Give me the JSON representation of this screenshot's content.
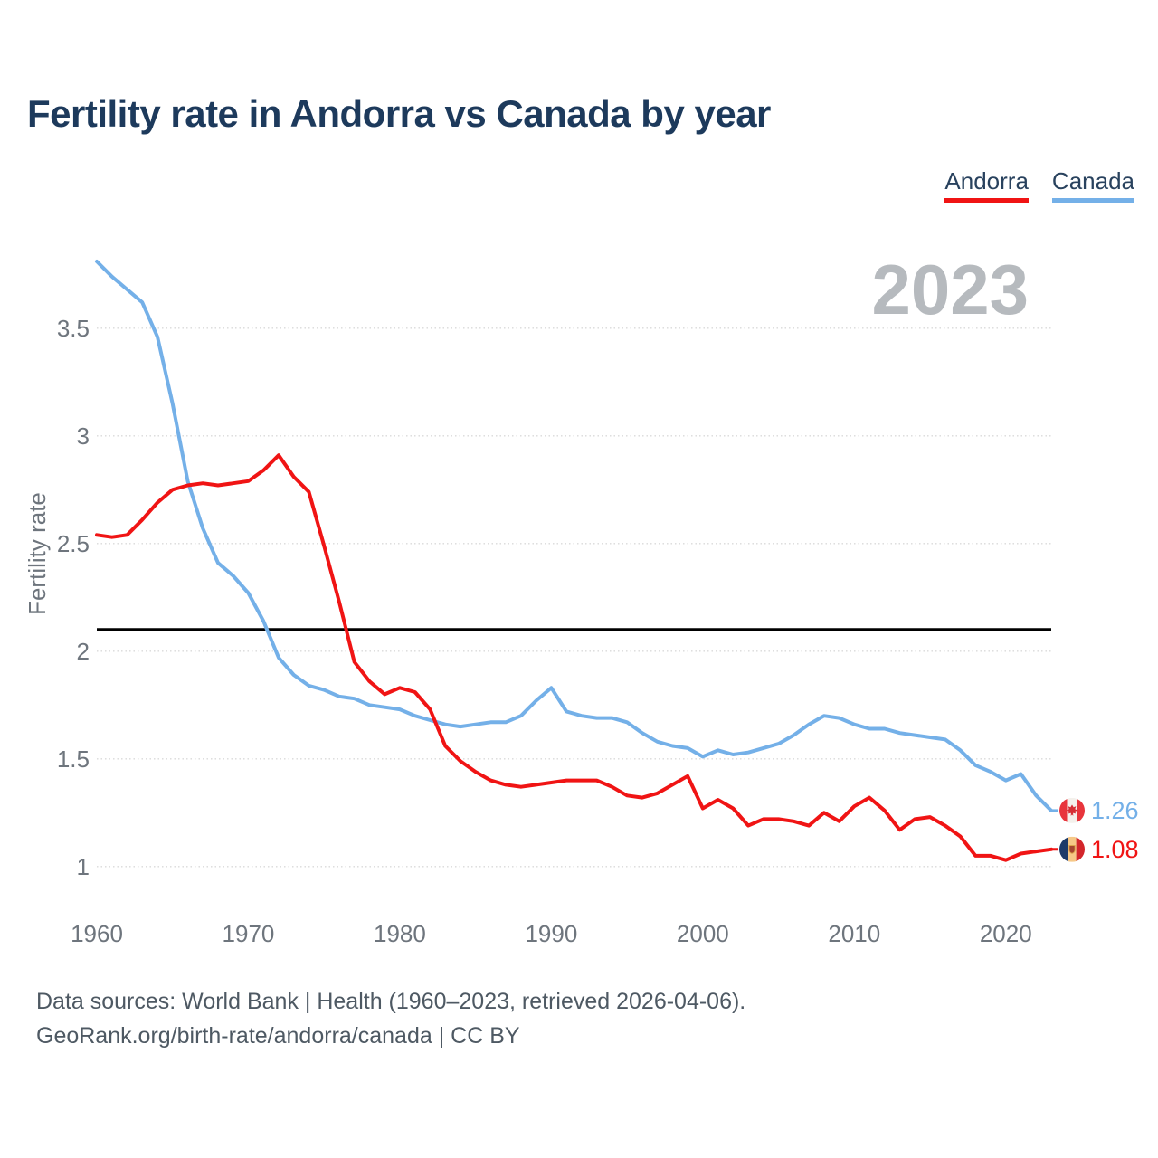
{
  "page": {
    "title": "Fertility rate in Andorra vs Canada by year",
    "watermark": "2023",
    "footer_line1": "Data sources: World Bank | Health (1960–2023, retrieved 2026-04-06).",
    "footer_line2": "GeoRank.org/birth-rate/andorra/canada | CC BY"
  },
  "legend": [
    {
      "label": "Andorra",
      "color": "#f01414"
    },
    {
      "label": "Canada",
      "color": "#74b0e8"
    }
  ],
  "colors": {
    "andorra": "#f01414",
    "canada": "#74b0e8",
    "title": "#1d3a5c",
    "legend_text": "#29425e",
    "axis_text": "#6e757d",
    "watermark": "#b6babe",
    "footer_text": "#4e5963",
    "gridline": "#d9d9d9",
    "reference_line": "#000000",
    "flags": {
      "canada-flag-icon": {
        "red": "#e8353c",
        "white": "#f4f1ec",
        "leaf": "#d52f35"
      },
      "andorra-flag-icon": {
        "blue": "#1c3a69",
        "yellow": "#f6c887",
        "red": "#d3262b",
        "crest": "#a5452f",
        "crest_border": "#daa54c"
      }
    }
  },
  "chart_data": {
    "type": "line",
    "title": "Fertility rate in Andorra vs Canada by year",
    "xlabel": "",
    "ylabel": "Fertility rate",
    "grid": "horizontal-dotted",
    "legend_position": "top-right",
    "year_badge": "2023",
    "xlim": [
      1960,
      2023
    ],
    "ylim": [
      0.85,
      3.9
    ],
    "xticks": [
      1960,
      1970,
      1980,
      1990,
      2000,
      2010,
      2020
    ],
    "yticks": [
      1,
      1.5,
      2,
      2.5,
      3,
      3.5
    ],
    "reference_line": {
      "value": 2.1,
      "color": "#000000"
    },
    "x": [
      1960,
      1961,
      1962,
      1963,
      1964,
      1965,
      1966,
      1967,
      1968,
      1969,
      1970,
      1971,
      1972,
      1973,
      1974,
      1975,
      1976,
      1977,
      1978,
      1979,
      1980,
      1981,
      1982,
      1983,
      1984,
      1985,
      1986,
      1987,
      1988,
      1989,
      1990,
      1991,
      1992,
      1993,
      1994,
      1995,
      1996,
      1997,
      1998,
      1999,
      2000,
      2001,
      2002,
      2003,
      2004,
      2005,
      2006,
      2007,
      2008,
      2009,
      2010,
      2011,
      2012,
      2013,
      2014,
      2015,
      2016,
      2017,
      2018,
      2019,
      2020,
      2021,
      2022,
      2023
    ],
    "series": [
      {
        "name": "Andorra",
        "color": "#f01414",
        "values": [
          2.54,
          2.53,
          2.54,
          2.61,
          2.69,
          2.75,
          2.77,
          2.78,
          2.77,
          2.78,
          2.79,
          2.84,
          2.91,
          2.81,
          2.74,
          2.49,
          2.23,
          1.95,
          1.86,
          1.8,
          1.83,
          1.81,
          1.73,
          1.56,
          1.49,
          1.44,
          1.4,
          1.38,
          1.37,
          1.38,
          1.39,
          1.4,
          1.4,
          1.4,
          1.37,
          1.33,
          1.32,
          1.34,
          1.38,
          1.42,
          1.27,
          1.31,
          1.27,
          1.19,
          1.22,
          1.22,
          1.21,
          1.19,
          1.25,
          1.21,
          1.28,
          1.32,
          1.26,
          1.17,
          1.22,
          1.23,
          1.19,
          1.14,
          1.05,
          1.05,
          1.03,
          1.06,
          1.07,
          1.08
        ]
      },
      {
        "name": "Canada",
        "color": "#74b0e8",
        "values": [
          3.81,
          3.74,
          3.68,
          3.62,
          3.46,
          3.15,
          2.79,
          2.57,
          2.41,
          2.35,
          2.27,
          2.14,
          1.97,
          1.89,
          1.84,
          1.82,
          1.79,
          1.78,
          1.75,
          1.74,
          1.73,
          1.7,
          1.68,
          1.66,
          1.65,
          1.66,
          1.67,
          1.67,
          1.7,
          1.77,
          1.83,
          1.72,
          1.7,
          1.69,
          1.69,
          1.67,
          1.62,
          1.58,
          1.56,
          1.55,
          1.51,
          1.54,
          1.52,
          1.53,
          1.55,
          1.57,
          1.61,
          1.66,
          1.7,
          1.69,
          1.66,
          1.64,
          1.64,
          1.62,
          1.61,
          1.6,
          1.59,
          1.54,
          1.47,
          1.44,
          1.4,
          1.43,
          1.33,
          1.26
        ]
      }
    ],
    "end_labels": [
      {
        "series": "Canada",
        "value_label": "1.26",
        "flag": "canada-flag-icon"
      },
      {
        "series": "Andorra",
        "value_label": "1.08",
        "flag": "andorra-flag-icon"
      }
    ]
  }
}
